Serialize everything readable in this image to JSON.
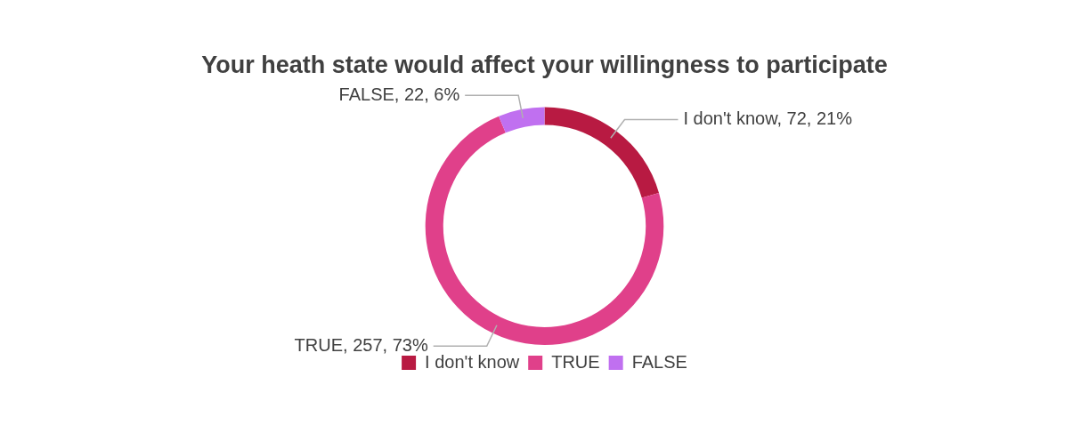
{
  "chart_data": {
    "type": "donut",
    "title": "Your heath state would affect your willingness to participate",
    "categories": [
      "I don't know",
      "TRUE",
      "FALSE"
    ],
    "values": [
      72,
      257,
      22
    ],
    "colors": [
      "#b81a42",
      "#e0408a",
      "#c070f0"
    ],
    "value_labels": [
      "I don't know, 72, 21%",
      "TRUE, 257, 73%",
      "FALSE, 22, 6%"
    ],
    "legend": "bottom"
  }
}
